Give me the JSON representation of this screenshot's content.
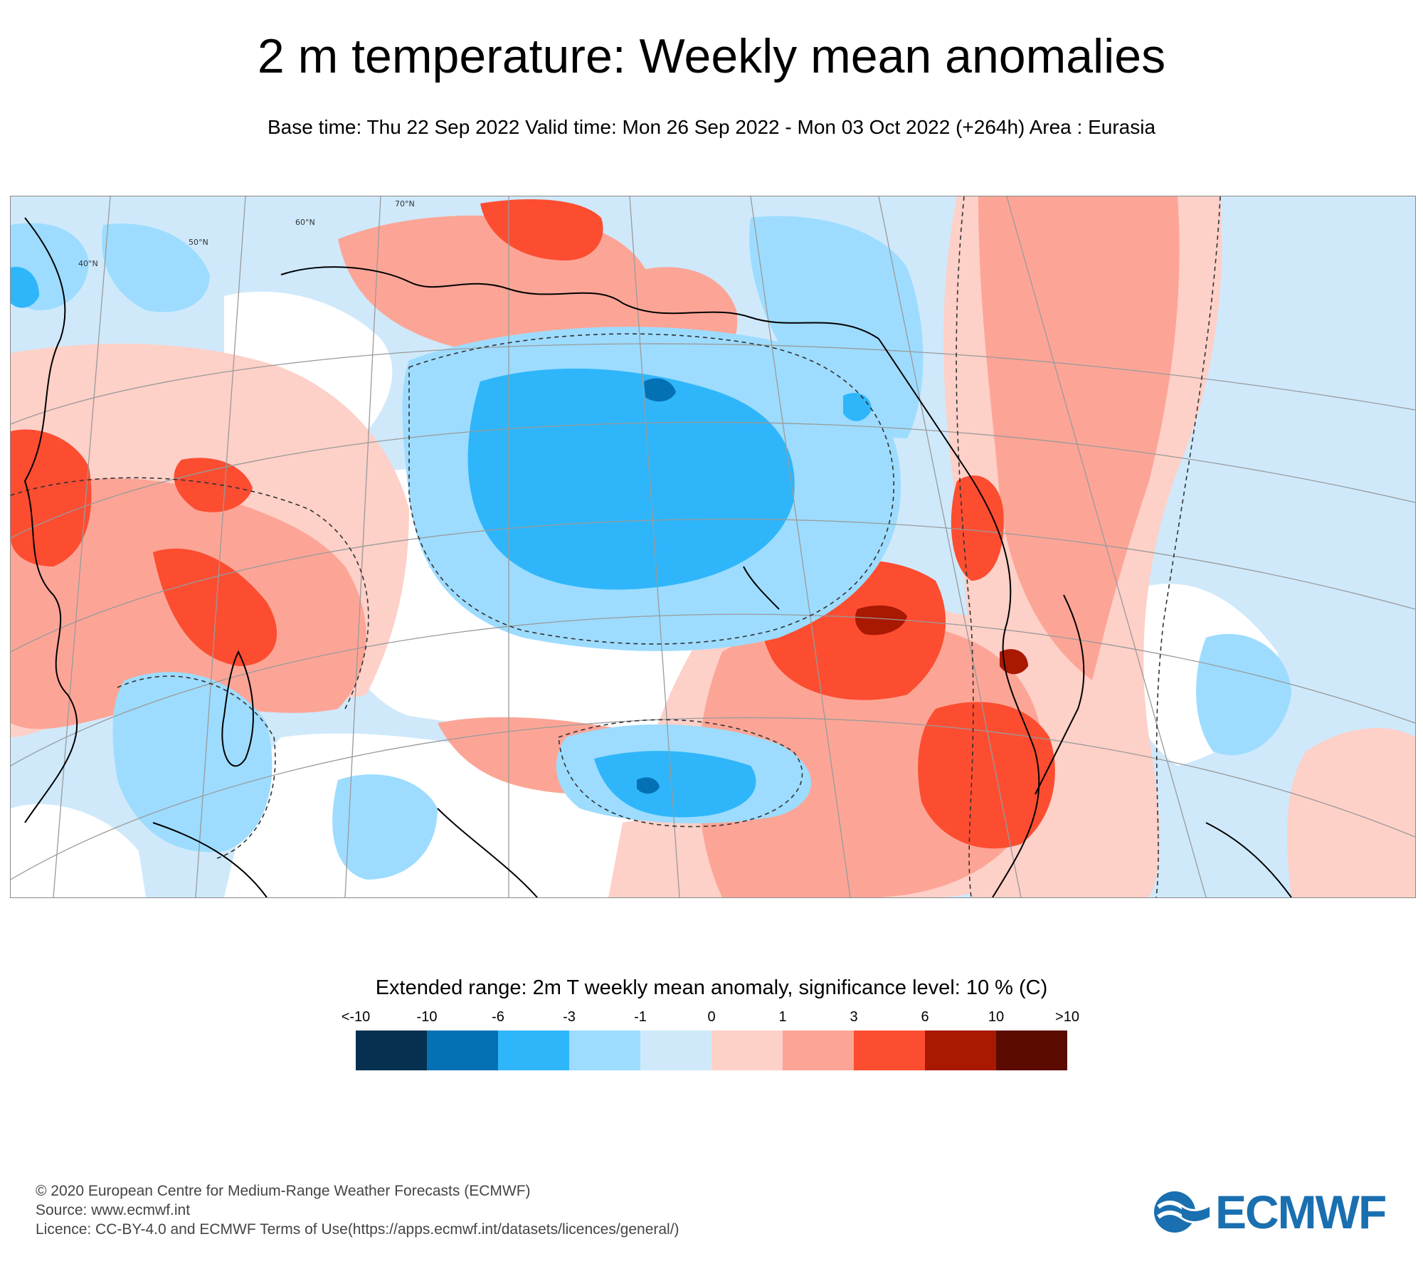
{
  "header": {
    "title": "2 m temperature: Weekly mean anomalies",
    "subtitle": "Base time: Thu 22 Sep 2022 Valid time: Mon 26 Sep 2022 - Mon 03 Oct 2022 (+264h) Area : Eurasia"
  },
  "map": {
    "region": "Eurasia",
    "latitude_labels": [
      "70°N",
      "60°N",
      "50°N",
      "40°N"
    ],
    "colors": {
      "lt_minus10": "#05304f",
      "minus10_minus6": "#0571b5",
      "minus6_minus3": "#2fb6fa",
      "minus3_minus1": "#9ddcff",
      "minus1_0": "#cfe9fb",
      "zero_1": "#fdd0c8",
      "one_3": "#fca596",
      "three_6": "#fc4d31",
      "six_10": "#a91800",
      "gt_10": "#5b0b00",
      "not_significant": "#ffffff",
      "coastline": "#000000",
      "borders": "#555555",
      "graticule": "#9a9a9a"
    }
  },
  "legend": {
    "title": "Extended range: 2m T weekly mean anomaly, significance level: 10 % (C)",
    "tick_labels": [
      "<-10",
      "-10",
      "-6",
      "-3",
      "-1",
      "0",
      "1",
      "3",
      "6",
      "10",
      ">10"
    ],
    "colors": [
      "#05304f",
      "#0571b5",
      "#2fb6fa",
      "#9ddcff",
      "#cfe9fb",
      "#fdd0c8",
      "#fca596",
      "#fc4d31",
      "#a91800",
      "#5b0b00"
    ]
  },
  "footer": {
    "line1": "© 2020 European Centre for Medium-Range Weather Forecasts (ECMWF)",
    "line2": "Source: www.ecmwf.int",
    "line3": "Licence: CC-BY-4.0 and ECMWF Terms of Use(https://apps.ecmwf.int/datasets/licences/general/)"
  },
  "logo": {
    "text": "ECMWF"
  }
}
